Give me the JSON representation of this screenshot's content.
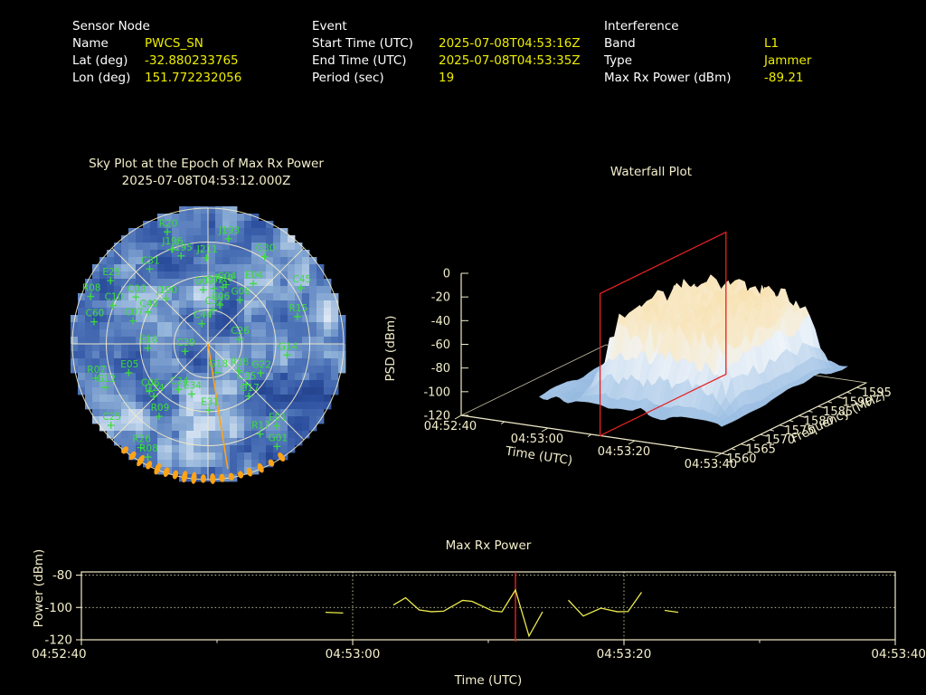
{
  "header": {
    "columns": [
      {
        "title": "Sensor Node",
        "rows": [
          [
            "Name",
            "PWCS_SN"
          ],
          [
            "Lat (deg)",
            "-32.880233765"
          ],
          [
            "Lon (deg)",
            "151.772232056"
          ]
        ]
      },
      {
        "title": "Event",
        "rows": [
          [
            "Start Time (UTC)",
            "2025-07-08T04:53:16Z"
          ],
          [
            "End Time (UTC)",
            "2025-07-08T04:53:35Z"
          ],
          [
            "Period (sec)",
            "19"
          ]
        ]
      },
      {
        "title": "Interference",
        "rows": [
          [
            "Band",
            "L1"
          ],
          [
            "Type",
            "Jammer"
          ],
          [
            "Max Rx Power (dBm)",
            "-89.21"
          ]
        ]
      }
    ]
  },
  "colors": {
    "background": "#000000",
    "label_text": "#ffffff",
    "value_text": "#eded00",
    "axis_text": "#f3eecb",
    "axis_line": "#efe9c8",
    "satellite_green": "#3bdc3b",
    "interference_orange": "#ffa317",
    "epoch_red": "#e42222",
    "data_line_yellow": "#ecec4e"
  },
  "chart_data": [
    {
      "id": "skyplot",
      "type": "heatmap",
      "title": "Sky Plot at the Epoch of Max Rx Power",
      "subtitle": "2025-07-08T04:53:12.000Z",
      "projection": "polar sky plot (azimuth clockwise from north, elevation 90 at zenith)",
      "elevation_rings_deg": [
        0,
        22.5,
        45,
        67.5
      ],
      "azimuth_spokes_deg": [
        0,
        45,
        90,
        135,
        180,
        225,
        270,
        315
      ],
      "interference_bearing_az_deg": 171,
      "horizon_marker_az_deg": [
        147,
        152,
        157,
        162,
        166,
        170,
        174,
        178,
        182,
        186,
        190,
        194,
        198,
        202,
        206,
        210,
        214,
        218
      ],
      "satellite_fields": [
        "id",
        "azimuth_deg",
        "elevation_deg"
      ],
      "satellites": [
        [
          "R20",
          340,
          11
        ],
        [
          "J196",
          339,
          23
        ],
        [
          "J195",
          343,
          29
        ],
        [
          "J211",
          359,
          33
        ],
        [
          "J193",
          11,
          19
        ],
        [
          "G30",
          33,
          21
        ],
        [
          "C31",
          322,
          27
        ],
        [
          "E25",
          303,
          13
        ],
        [
          "R08",
          292,
          6
        ],
        [
          "C03",
          303,
          33
        ],
        [
          "J190",
          317,
          49
        ],
        [
          "C10",
          292,
          22
        ],
        [
          "C40",
          298,
          45
        ],
        [
          "C07",
          287,
          38
        ],
        [
          "C60",
          281,
          13
        ],
        [
          "E16",
          266,
          50
        ],
        [
          "C39",
          252,
          74
        ],
        [
          "R19",
          15,
          51
        ],
        [
          "G06",
          36,
          54
        ],
        [
          "E06",
          17,
          63
        ],
        [
          "E04",
          37,
          40
        ],
        [
          "C04",
          17,
          49
        ],
        [
          "C02",
          6,
          53
        ],
        [
          "C45",
          59,
          18
        ],
        [
          "R15",
          73,
          28
        ],
        [
          "C26",
          82,
          69
        ],
        [
          "G14",
          98,
          37
        ],
        [
          "C44",
          343,
          76
        ],
        [
          "C32",
          9,
          67
        ],
        [
          "G09",
          355,
          54
        ],
        [
          "E05",
          250,
          34
        ],
        [
          "R07",
          253,
          12
        ],
        [
          "G12",
          247,
          16
        ],
        [
          "C06",
          231,
          40
        ],
        [
          "G24",
          226,
          40
        ],
        [
          "C24",
          213,
          54
        ],
        [
          "E34",
          198,
          55
        ],
        [
          "R09",
          214,
          32
        ],
        [
          "C25",
          230,
          6
        ],
        [
          "R26",
          213,
          8
        ],
        [
          "R08",
          208,
          5
        ],
        [
          "E31",
          179,
          46
        ],
        [
          "G17",
          142,
          46
        ],
        [
          "C35",
          137,
          53
        ],
        [
          "G22",
          119,
          50
        ],
        [
          "R18",
          131,
          63
        ],
        [
          "G18",
          162,
          70
        ],
        [
          "E01",
          140,
          19
        ],
        [
          "R17",
          150,
          21
        ],
        [
          "G01",
          146,
          8
        ]
      ]
    },
    {
      "id": "waterfall",
      "type": "surface",
      "title": "Waterfall Plot",
      "xlabel": "Time (UTC)",
      "ylabel": "Frequency (MHz)",
      "zlabel": "PSD (dBm)",
      "time_ticks": [
        "04:52:40",
        "04:53:00",
        "04:53:20",
        "04:53:40"
      ],
      "freq_ticks": [
        1560,
        1565,
        1570,
        1575,
        1580,
        1585,
        1590,
        1595
      ],
      "psd_ticks": [
        0,
        -20,
        -40,
        -60,
        -80,
        -100,
        -120
      ],
      "time_range": [
        "04:52:40",
        "04:53:40"
      ],
      "freq_axis_range_mhz": [
        1560,
        1597.5
      ],
      "psd_range_dbm": [
        -120,
        0
      ],
      "epoch_slice_utc": "04:53:12",
      "surface_summary": {
        "data_start_utc": "04:52:58",
        "plateau_time_utc": [
          "04:53:05",
          "04:53:36"
        ],
        "plateau_freq_mhz": [
          1563,
          1588
        ],
        "plateau_psd_dbm_approx": -30,
        "floor_psd_dbm_approx": -95
      }
    },
    {
      "id": "max_rx_power",
      "type": "line",
      "title": "Max Rx Power",
      "xlabel": "Time (UTC)",
      "ylabel": "Power (dBm)",
      "x_ticks": [
        "04:52:40",
        "04:53:00",
        "04:53:20",
        "04:53:40"
      ],
      "x_tick_seconds": [
        0,
        20,
        40,
        60
      ],
      "x_minor_tick_seconds": [
        10,
        30,
        50
      ],
      "y_ticks": [
        -80,
        -100,
        -120
      ],
      "ylim": [
        -120,
        -78
      ],
      "x_range_seconds": 60,
      "epoch_marker_seconds": 32,
      "gridlines_dotted": true,
      "series": [
        {
          "name": "max_rx_power_dbm",
          "points": [
            [
              18,
              -103
            ],
            [
              19.3,
              -103.4
            ],
            null,
            [
              23,
              -98.5
            ],
            [
              23.9,
              -94
            ],
            [
              24.9,
              -101.5
            ],
            [
              25.8,
              -102.6
            ],
            [
              26.7,
              -102.3
            ],
            [
              28.1,
              -95.6
            ],
            [
              28.8,
              -96.2
            ],
            [
              30.3,
              -102.1
            ],
            [
              31,
              -102.7
            ],
            [
              32,
              -89.2
            ],
            [
              33,
              -117.7
            ],
            [
              34,
              -102.7
            ],
            null,
            [
              35.9,
              -95.5
            ],
            [
              37,
              -105.3
            ],
            [
              38.3,
              -100.4
            ],
            [
              39.5,
              -102.6
            ],
            [
              40.3,
              -102.5
            ],
            [
              41.3,
              -90.6
            ],
            null,
            [
              43,
              -101.8
            ],
            [
              44,
              -103
            ]
          ]
        }
      ]
    }
  ]
}
